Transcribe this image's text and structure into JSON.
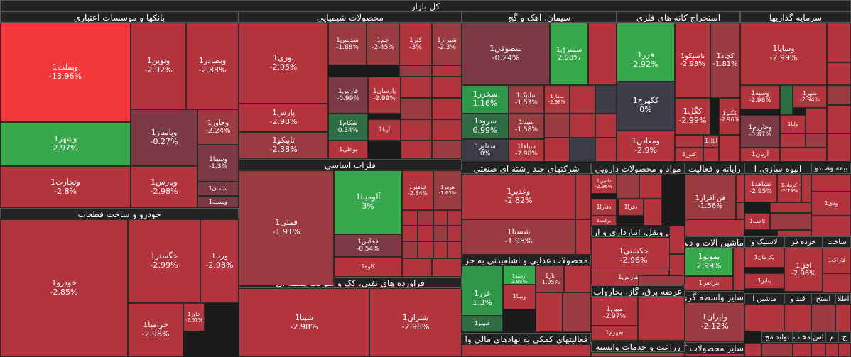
{
  "colors": {
    "neg_strong": "#f2383a",
    "neg": "#b2353d",
    "neg_mid": "#9a3b42",
    "neg_weak": "#7c3a44",
    "neutral": "#3d3d49",
    "pos_weak": "#2f6d45",
    "pos": "#2e9848",
    "pos_strong": "#37a84c"
  },
  "chart_data": {
    "type": "heatmap",
    "title": "کل بازار",
    "sectors": [
      {
        "name": "بانکها و موسسات اعتباری",
        "tiles": [
          {
            "name": "وبملت1",
            "pct": "-13.96%",
            "value": -13.96
          },
          {
            "name": "ونوین1",
            "pct": "-2.92%",
            "value": -2.92
          },
          {
            "name": "وبصادر1",
            "pct": "-2.88%",
            "value": -2.88
          },
          {
            "name": "وشهر1",
            "pct": "2.97%",
            "value": 2.97
          },
          {
            "name": "وپاسار1",
            "pct": "-0.27%",
            "value": -0.27
          },
          {
            "name": "وخاور1",
            "pct": "-2.24%",
            "value": -2.24
          },
          {
            "name": "وسینا1",
            "pct": "-1.3%",
            "value": -1.3
          },
          {
            "name": "وتجارت1",
            "pct": "-2.8%",
            "value": -2.8
          },
          {
            "name": "وپارس1",
            "pct": "-2.98%",
            "value": -2.98
          },
          {
            "name": "سامان1",
            "pct": "",
            "value": -0.5
          },
          {
            "name": "وپست1",
            "pct": "",
            "value": -0.4
          }
        ]
      },
      {
        "name": "خودرو و ساخت قطعات",
        "tiles": [
          {
            "name": "خودرو1",
            "pct": "-2.85%",
            "value": -2.85
          },
          {
            "name": "خگستر1",
            "pct": "-2.99%",
            "value": -2.99
          },
          {
            "name": "ورنا1",
            "pct": "-2.98%",
            "value": -2.98
          },
          {
            "name": "خزامیا1",
            "pct": "-2.98%",
            "value": -2.98
          },
          {
            "name": "خاور1",
            "pct": "-2.97%",
            "value": -2.97
          }
        ]
      },
      {
        "name": "محصولات شیمیایی",
        "tiles": [
          {
            "name": "نوری1",
            "pct": "-2.95%",
            "value": -2.95
          },
          {
            "name": "شدیس1",
            "pct": "-1.88%",
            "value": -1.88
          },
          {
            "name": "جم1",
            "pct": "-2.45%",
            "value": -2.45
          },
          {
            "name": "کلر1",
            "pct": "-3%",
            "value": -3
          },
          {
            "name": "شیراز1",
            "pct": "-2.3%",
            "value": -2.3
          },
          {
            "name": "فارس1",
            "pct": "-0.99%",
            "value": -0.99
          },
          {
            "name": "پارسان1",
            "pct": "-2.99%",
            "value": -2.99
          },
          {
            "name": "پارس1",
            "pct": "-2.98%",
            "value": -2.98
          },
          {
            "name": "شکام1",
            "pct": "0.34%",
            "value": 0.34
          },
          {
            "name": "آریا1",
            "pct": "",
            "value": -2.5
          },
          {
            "name": "تاپیکو1",
            "pct": "-2.38%",
            "value": -2.38
          },
          {
            "name": "بوعلی1",
            "pct": "",
            "value": -2.5
          }
        ]
      },
      {
        "name": "فلزات اساسی",
        "tiles": [
          {
            "name": "فملی1",
            "pct": "-1.91%",
            "value": -1.91
          },
          {
            "name": "آلومینا1",
            "pct": "3%",
            "value": 3
          },
          {
            "name": "فباهنر1",
            "pct": "-2.84%",
            "value": -2.84
          },
          {
            "name": "هرمز1",
            "pct": "-1.65%",
            "value": -1.65
          },
          {
            "name": "فخاس1",
            "pct": "-0.54%",
            "value": -0.54
          },
          {
            "name": "کاوه1",
            "pct": "",
            "value": -2.5
          }
        ]
      },
      {
        "name": "فراورده های نفتی، کک و سوخت هسته ای",
        "tiles": [
          {
            "name": "شپنا1",
            "pct": "-2.98%",
            "value": -2.98
          },
          {
            "name": "شتران1",
            "pct": "-2.98%",
            "value": -2.98
          }
        ]
      },
      {
        "name": "سیمان، آهک و گچ",
        "tiles": [
          {
            "name": "سصوفی1",
            "pct": "-0.24%",
            "value": -0.24
          },
          {
            "name": "سشرق1",
            "pct": "2.98%",
            "value": 2.98
          },
          {
            "name": "سخزر1",
            "pct": "1.16%",
            "value": 1.16
          },
          {
            "name": "ساتپک1",
            "pct": "-1.53%",
            "value": -1.53
          },
          {
            "name": "سفار1",
            "pct": "-2.98%",
            "value": -2.98
          },
          {
            "name": "سرود1",
            "pct": "0.99%",
            "value": 0.99
          },
          {
            "name": "سیتا1",
            "pct": "-1.58%",
            "value": -1.58
          },
          {
            "name": "سفاور1",
            "pct": "0%",
            "value": 0
          },
          {
            "name": "سپاها1",
            "pct": "-2.98%",
            "value": -2.98
          }
        ]
      },
      {
        "name": "استخراج کانه های فلزی",
        "tiles": [
          {
            "name": "فزر1",
            "pct": "2.92%",
            "value": 2.92
          },
          {
            "name": "تاصیکو1",
            "pct": "-2.93%",
            "value": -2.93
          },
          {
            "name": "کچاد1",
            "pct": "-1.81%",
            "value": -1.81
          },
          {
            "name": "کگهرح1",
            "pct": "0%",
            "value": 0
          },
          {
            "name": "کگل1",
            "pct": "-2.99%",
            "value": -2.99
          },
          {
            "name": "کگلر1",
            "pct": "-2.96%",
            "value": -2.96
          },
          {
            "name": "ومعادن1",
            "pct": "-2.9%",
            "value": -2.9
          },
          {
            "name": "اپال1",
            "pct": "",
            "value": -2.5
          },
          {
            "name": "کنور1",
            "pct": "",
            "value": -2.5
          }
        ]
      },
      {
        "name": "سرمایه گذاریها",
        "tiles": [
          {
            "name": "وساپا1",
            "pct": "-2.99%",
            "value": -2.99
          },
          {
            "name": "وسپه1",
            "pct": "-2.98%",
            "value": -2.98
          },
          {
            "name": "شهر1",
            "pct": "-2.94%",
            "value": -2.94
          },
          {
            "name": "وخارزم1",
            "pct": "-0.87%",
            "value": -0.87
          },
          {
            "name": "ولپا1",
            "pct": "",
            "value": -2.5
          },
          {
            "name": "آریان1",
            "pct": "",
            "value": -2.5
          }
        ]
      },
      {
        "name": "شرکتهای چند رشته ای صنعتی",
        "tiles": [
          {
            "name": "وغدیر1",
            "pct": "-2.82%",
            "value": -2.82
          },
          {
            "name": "شستا1",
            "pct": "-1.98%",
            "value": -1.98
          }
        ]
      },
      {
        "name": "مواد و محصولات دارویی",
        "tiles": [
          {
            "name": "دامین1",
            "pct": "-2.96%",
            "value": -2.96
          },
          {
            "name": "دفارا1",
            "pct": "",
            "value": -2.5
          },
          {
            "name": "دفرا1",
            "pct": "",
            "value": -2.5
          },
          {
            "name": "برکت1",
            "pct": "",
            "value": -2.5
          }
        ]
      },
      {
        "name": "رایانه و فعالیت",
        "tiles": [
          {
            "name": "فن افزار1",
            "pct": "-1.56%",
            "value": -1.56
          }
        ]
      },
      {
        "name": "انبوه سازی، ا",
        "tiles": [
          {
            "name": "ثشاهد1",
            "pct": "-2.95%",
            "value": -2.95
          },
          {
            "name": "کرمان1",
            "pct": "-2.79%",
            "value": -2.79
          },
          {
            "name": "ثاخت1",
            "pct": "",
            "value": -2.5
          }
        ]
      },
      {
        "name": "بیمه وصندو",
        "tiles": [
          {
            "name": "ودی1",
            "pct": "",
            "value": -2.5
          }
        ]
      },
      {
        "name": "حمل ونقل، انبارداری و ار",
        "tiles": [
          {
            "name": "حکشتی1",
            "pct": "-2.96%",
            "value": -2.96
          },
          {
            "name": "حفارس1",
            "pct": "",
            "value": -2.5
          }
        ]
      },
      {
        "name": "ماشین آلات و دس",
        "tiles": [
          {
            "name": "بموتو1",
            "pct": "2.99%",
            "value": 2.99
          },
          {
            "name": "بترانس1",
            "pct": "",
            "value": -2.5
          }
        ]
      },
      {
        "name": "لاستیک و",
        "tiles": [
          {
            "name": "پکرمان1",
            "pct": "",
            "value": -2.5
          },
          {
            "name": "پتایر1",
            "pct": "",
            "value": -2.5
          }
        ]
      },
      {
        "name": "خرده فر",
        "tiles": [
          {
            "name": "افق1",
            "pct": "-2.96%",
            "value": -2.96
          }
        ]
      },
      {
        "name": "ساخت",
        "tiles": [
          {
            "name": "فاراک1",
            "pct": "",
            "value": -2.5
          }
        ]
      },
      {
        "name": "محصولات غذایی و آشامیدنی به جز",
        "tiles": [
          {
            "name": "غزر1",
            "pct": "1.3%",
            "value": 1.3
          },
          {
            "name": "آردینه1",
            "pct": "2.95%",
            "value": 2.95
          },
          {
            "name": "غبهنو1",
            "pct": "",
            "value": 0.5
          },
          {
            "name": "وبینا1",
            "pct": "",
            "value": -2.5
          },
          {
            "name": "تار1",
            "pct": "-1.95%",
            "value": -1.95
          }
        ]
      },
      {
        "name": "عرضه برق، گاز، بخاروآب",
        "tiles": [
          {
            "name": "مبین1",
            "pct": "-2.97%",
            "value": -2.97
          },
          {
            "name": "بجهرم1",
            "pct": "",
            "value": -2.5
          }
        ]
      },
      {
        "name": "سایر واسطه گری",
        "tiles": [
          {
            "name": "وایران1",
            "pct": "-2.12%",
            "value": -2.12
          }
        ]
      },
      {
        "name": "ماشین ا",
        "tiles": []
      },
      {
        "name": "قند و",
        "tiles": []
      },
      {
        "name": "استخ",
        "tiles": []
      },
      {
        "name": "اطلا",
        "tiles": []
      },
      {
        "name": "فعالیتهای کمکی به نهادهای مالی وا",
        "tiles": []
      },
      {
        "name": "زراعت و خدمات وابسته",
        "tiles": []
      },
      {
        "name": "سایر محصولات ک",
        "tiles": []
      },
      {
        "name": "تولید مح",
        "tiles": []
      },
      {
        "name": "مخاب",
        "tiles": []
      },
      {
        "name": "اس",
        "tiles": []
      },
      {
        "name": "م",
        "tiles": []
      },
      {
        "name": "ح",
        "tiles": []
      },
      {
        "name": "د",
        "tiles": []
      }
    ]
  }
}
